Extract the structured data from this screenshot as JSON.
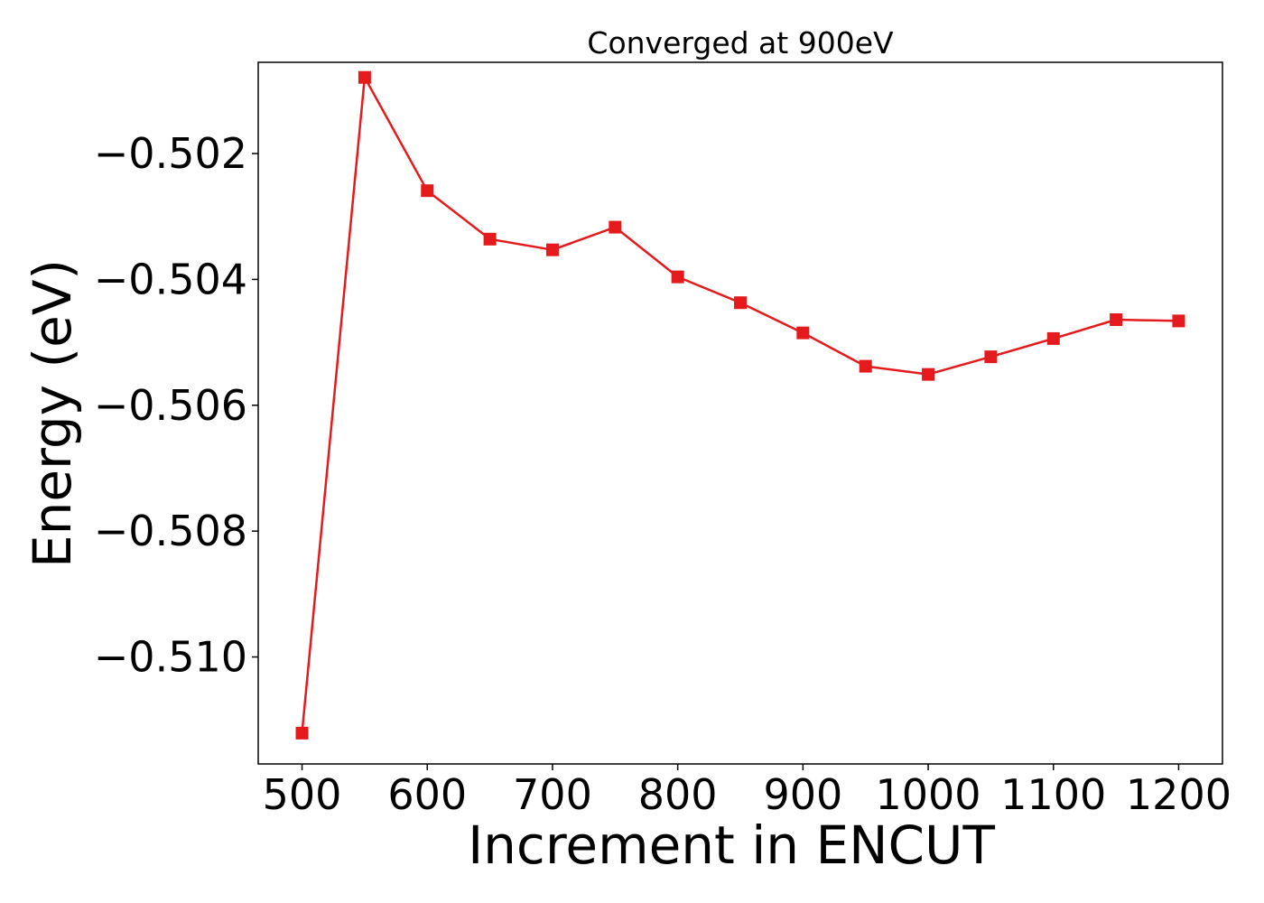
{
  "chart_data": {
    "type": "line",
    "title": "Converged at 900eV",
    "xlabel": "Increment in ENCUT",
    "ylabel": "Energy (eV)",
    "xlim": [
      465,
      1235
    ],
    "ylim": [
      -0.5117,
      -0.50055
    ],
    "xticks": [
      500,
      600,
      700,
      800,
      900,
      1000,
      1100,
      1200
    ],
    "xtick_labels": [
      "500",
      "600",
      "700",
      "800",
      "900",
      "1000",
      "1100",
      "1200"
    ],
    "yticks": [
      -0.502,
      -0.504,
      -0.506,
      -0.508,
      -0.51
    ],
    "ytick_labels": [
      "−0.502",
      "−0.504",
      "−0.506",
      "−0.508",
      "−0.510"
    ],
    "grid": false,
    "series": [
      {
        "color": "#e41a1c",
        "marker": "square",
        "x": [
          500,
          550,
          600,
          650,
          700,
          750,
          800,
          850,
          900,
          950,
          1000,
          1050,
          1100,
          1150,
          1200
        ],
        "y": [
          -0.51121,
          -0.50079,
          -0.50259,
          -0.50336,
          -0.50353,
          -0.50317,
          -0.50396,
          -0.50437,
          -0.50485,
          -0.50538,
          -0.50551,
          -0.50523,
          -0.50494,
          -0.50464,
          -0.50466
        ]
      }
    ]
  }
}
